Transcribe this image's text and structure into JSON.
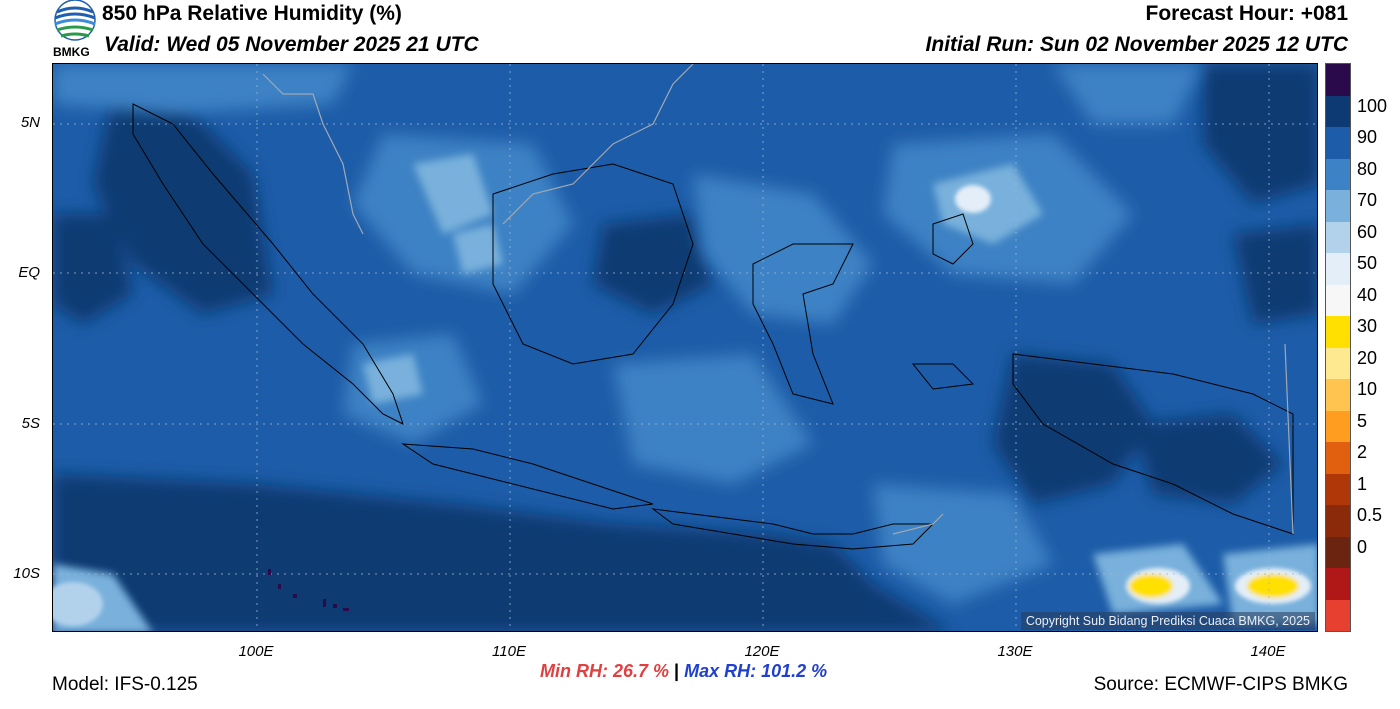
{
  "header": {
    "title": "850 hPa Relative Humidity (%)",
    "valid": "Valid: Wed 05 November 2025 21 UTC",
    "forecast_hour": "Forecast Hour: +081",
    "initial_run": "Initial Run: Sun 02 November 2025 12 UTC"
  },
  "logo": {
    "text": "BMKG"
  },
  "map": {
    "copyright": "Copyright Sub Bidang Prediksi Cuaca BMKG, 2025",
    "lat_labels": [
      "5N",
      "EQ",
      "5S",
      "10S"
    ],
    "lon_labels": [
      "100E",
      "110E",
      "120E",
      "130E",
      "140E"
    ]
  },
  "colorbar": {
    "labels": [
      "100",
      "90",
      "80",
      "70",
      "60",
      "50",
      "40",
      "30",
      "20",
      "10",
      "5",
      "2",
      "1",
      "0.5",
      "0"
    ],
    "colors": [
      "#2a0a4a",
      "#0d3a72",
      "#1d5ca8",
      "#3d82c4",
      "#79b1dc",
      "#b2d2ec",
      "#e4eef8",
      "#f7f7f7",
      "#ffe000",
      "#ffe990",
      "#ffc350",
      "#ff9d20",
      "#e06010",
      "#b03808",
      "#8a2a0a",
      "#6a2410",
      "#b01818",
      "#e84030"
    ]
  },
  "stats": {
    "min": "Min RH:  26.7 %",
    "separator": "|",
    "max": "Max RH: 101.2 %"
  },
  "footer": {
    "model": "Model: IFS-0.125",
    "source": "Source: ECMWF-CIPS BMKG"
  }
}
